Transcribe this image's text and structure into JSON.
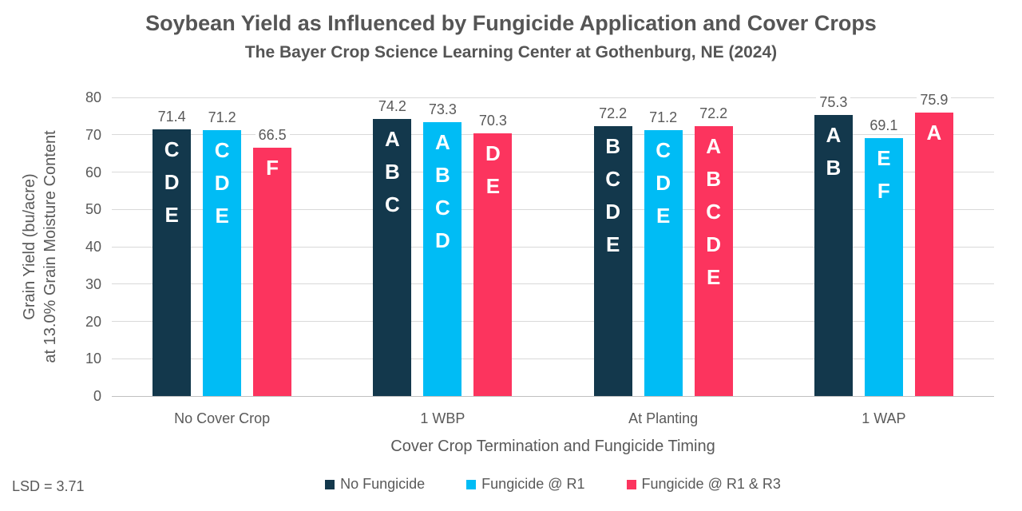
{
  "page": {
    "lsd_note": "LSD = 3.71"
  },
  "chart_data": {
    "type": "bar",
    "title": "Soybean Yield as Influenced by Fungicide Application and Cover Crops",
    "subtitle": "The Bayer Crop Science Learning Center at Gothenburg, NE (2024)",
    "xlabel": "Cover Crop Termination and Fungicide Timing",
    "ylabel_line1": "Grain Yield (bu/acre)",
    "ylabel_line2": "at 13.0% Grain Moisture Content",
    "categories": [
      "No Cover Crop",
      "1 WBP",
      "At Planting",
      "1 WAP"
    ],
    "series": [
      {
        "name": "No Fungicide",
        "color": "#13384c",
        "values": [
          71.4,
          74.2,
          72.2,
          75.3
        ],
        "letters": [
          "CDE",
          "ABC",
          "BCDE",
          "AB"
        ]
      },
      {
        "name": "Fungicide @ R1",
        "color": "#00bcf5",
        "values": [
          71.2,
          73.3,
          71.2,
          69.1
        ],
        "letters": [
          "CDE",
          "ABCD",
          "CDE",
          "EF"
        ]
      },
      {
        "name": "Fungicide @ R1 & R3",
        "color": "#fc345e",
        "values": [
          66.5,
          70.3,
          72.2,
          75.9
        ],
        "letters": [
          "F",
          "DE",
          "ABCDE",
          "A"
        ]
      }
    ],
    "ylim": [
      0,
      80
    ],
    "yticks": [
      0,
      10,
      20,
      30,
      40,
      50,
      60,
      70,
      80
    ],
    "grid": "horizontal",
    "gridline_color": "#d9d9d9",
    "axis_text_color": "#595959",
    "legend_position": "bottom"
  }
}
